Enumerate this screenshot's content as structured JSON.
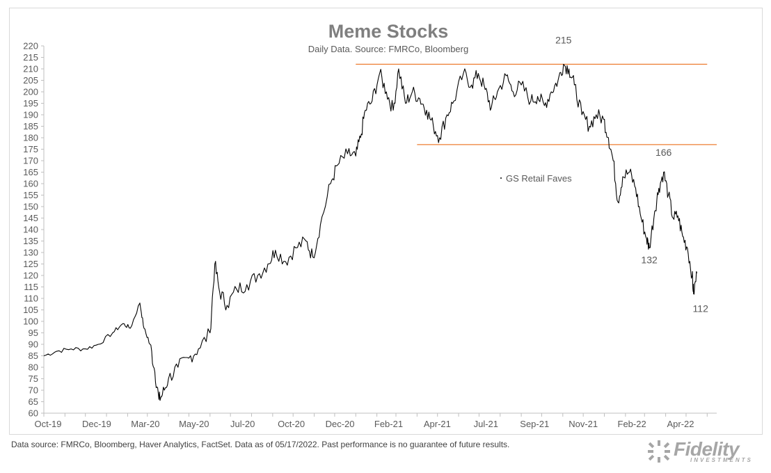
{
  "chart_data": {
    "type": "line",
    "title": "Meme Stocks",
    "subtitle": "Daily Data. Source: FMRCo, Bloomberg",
    "xlabel": "",
    "ylabel": "",
    "ylim": [
      60,
      220
    ],
    "ytick_step": 5,
    "xlim": [
      "2019-10-01",
      "2022-06-15"
    ],
    "x_tick_labels": [
      "Oct-19",
      "Dec-19",
      "Mar-20",
      "May-20",
      "Jul-20",
      "Oct-20",
      "Dec-20",
      "Feb-21",
      "Apr-21",
      "Jul-21",
      "Sep-21",
      "Nov-21",
      "Feb-22",
      "Apr-22"
    ],
    "grid": false,
    "legend": {
      "position": "middle-right",
      "entries": [
        "GS Retail Faves"
      ]
    },
    "series": [
      {
        "name": "GS Retail Faves",
        "color": "#000000",
        "points": [
          [
            "2019-10-01",
            85
          ],
          [
            "2019-10-20",
            87
          ],
          [
            "2019-11-10",
            88
          ],
          [
            "2019-12-01",
            88
          ],
          [
            "2019-12-20",
            90
          ],
          [
            "2020-01-10",
            95
          ],
          [
            "2020-01-25",
            99
          ],
          [
            "2020-02-05",
            97
          ],
          [
            "2020-02-19",
            108
          ],
          [
            "2020-02-25",
            97
          ],
          [
            "2020-03-05",
            90
          ],
          [
            "2020-03-12",
            78
          ],
          [
            "2020-03-18",
            66
          ],
          [
            "2020-03-23",
            68
          ],
          [
            "2020-04-01",
            75
          ],
          [
            "2020-04-15",
            80
          ],
          [
            "2020-05-01",
            84
          ],
          [
            "2020-05-15",
            88
          ],
          [
            "2020-06-01",
            95
          ],
          [
            "2020-06-08",
            125
          ],
          [
            "2020-06-15",
            113
          ],
          [
            "2020-06-26",
            107
          ],
          [
            "2020-07-10",
            114
          ],
          [
            "2020-07-25",
            116
          ],
          [
            "2020-08-10",
            120
          ],
          [
            "2020-08-25",
            125
          ],
          [
            "2020-09-05",
            131
          ],
          [
            "2020-09-20",
            126
          ],
          [
            "2020-10-05",
            132
          ],
          [
            "2020-10-20",
            135
          ],
          [
            "2020-10-30",
            128
          ],
          [
            "2020-11-10",
            142
          ],
          [
            "2020-11-25",
            160
          ],
          [
            "2020-12-05",
            168
          ],
          [
            "2020-12-20",
            173
          ],
          [
            "2021-01-01",
            172
          ],
          [
            "2021-01-08",
            180
          ],
          [
            "2021-01-15",
            192
          ],
          [
            "2021-01-25",
            196
          ],
          [
            "2021-02-05",
            208
          ],
          [
            "2021-02-15",
            200
          ],
          [
            "2021-02-25",
            192
          ],
          [
            "2021-03-05",
            210
          ],
          [
            "2021-03-15",
            195
          ],
          [
            "2021-03-25",
            200
          ],
          [
            "2021-04-05",
            197
          ],
          [
            "2021-04-15",
            192
          ],
          [
            "2021-04-25",
            185
          ],
          [
            "2021-05-04",
            180
          ],
          [
            "2021-05-15",
            190
          ],
          [
            "2021-05-25",
            196
          ],
          [
            "2021-06-08",
            208
          ],
          [
            "2021-06-20",
            203
          ],
          [
            "2021-06-30",
            208
          ],
          [
            "2021-07-10",
            201
          ],
          [
            "2021-07-19",
            193
          ],
          [
            "2021-07-28",
            200
          ],
          [
            "2021-08-10",
            207
          ],
          [
            "2021-08-20",
            200
          ],
          [
            "2021-09-01",
            203
          ],
          [
            "2021-09-15",
            196
          ],
          [
            "2021-09-25",
            198
          ],
          [
            "2021-10-05",
            194
          ],
          [
            "2021-10-15",
            200
          ],
          [
            "2021-10-25",
            205
          ],
          [
            "2021-11-02",
            212
          ],
          [
            "2021-11-10",
            210
          ],
          [
            "2021-11-18",
            203
          ],
          [
            "2021-11-29",
            190
          ],
          [
            "2021-12-10",
            185
          ],
          [
            "2021-12-20",
            190
          ],
          [
            "2021-12-31",
            188
          ],
          [
            "2022-01-07",
            180
          ],
          [
            "2022-01-14",
            170
          ],
          [
            "2022-01-21",
            152
          ],
          [
            "2022-01-28",
            163
          ],
          [
            "2022-02-07",
            165
          ],
          [
            "2022-02-16",
            158
          ],
          [
            "2022-02-24",
            145
          ],
          [
            "2022-03-04",
            136
          ],
          [
            "2022-03-08",
            132
          ],
          [
            "2022-03-16",
            148
          ],
          [
            "2022-03-22",
            158
          ],
          [
            "2022-03-29",
            165
          ],
          [
            "2022-04-05",
            155
          ],
          [
            "2022-04-12",
            145
          ],
          [
            "2022-04-19",
            146
          ],
          [
            "2022-04-26",
            137
          ],
          [
            "2022-05-03",
            132
          ],
          [
            "2022-05-10",
            120
          ],
          [
            "2022-05-12",
            112
          ],
          [
            "2022-05-17",
            121
          ]
        ]
      }
    ],
    "reference_lines": [
      {
        "y": 212,
        "x_start": "2021-01-01",
        "x_end": "2022-06-01",
        "color": "#ed7d31"
      },
      {
        "y": 177,
        "x_start": "2021-04-01",
        "x_end": "2022-06-15",
        "color": "#ed7d31"
      }
    ],
    "annotations": [
      {
        "text": "215",
        "x": "2021-11-02",
        "y": 215
      },
      {
        "text": "166",
        "x": "2022-03-29",
        "y": 166
      },
      {
        "text": "132",
        "x": "2022-03-08",
        "y": 132
      },
      {
        "text": "112",
        "x": "2022-05-12",
        "y": 112
      }
    ]
  },
  "footnote": "Data source: FMRCo, Bloomberg, Haver Analytics, FactSet. Data as of 05/17/2022. Past performance is no guarantee of future results.",
  "logo": {
    "word": "Fidelity",
    "sub": "INVESTMENTS"
  },
  "colors": {
    "line": "#000000",
    "reference": "#ed7d31",
    "text": "#595959",
    "title": "#7f7f7f"
  }
}
